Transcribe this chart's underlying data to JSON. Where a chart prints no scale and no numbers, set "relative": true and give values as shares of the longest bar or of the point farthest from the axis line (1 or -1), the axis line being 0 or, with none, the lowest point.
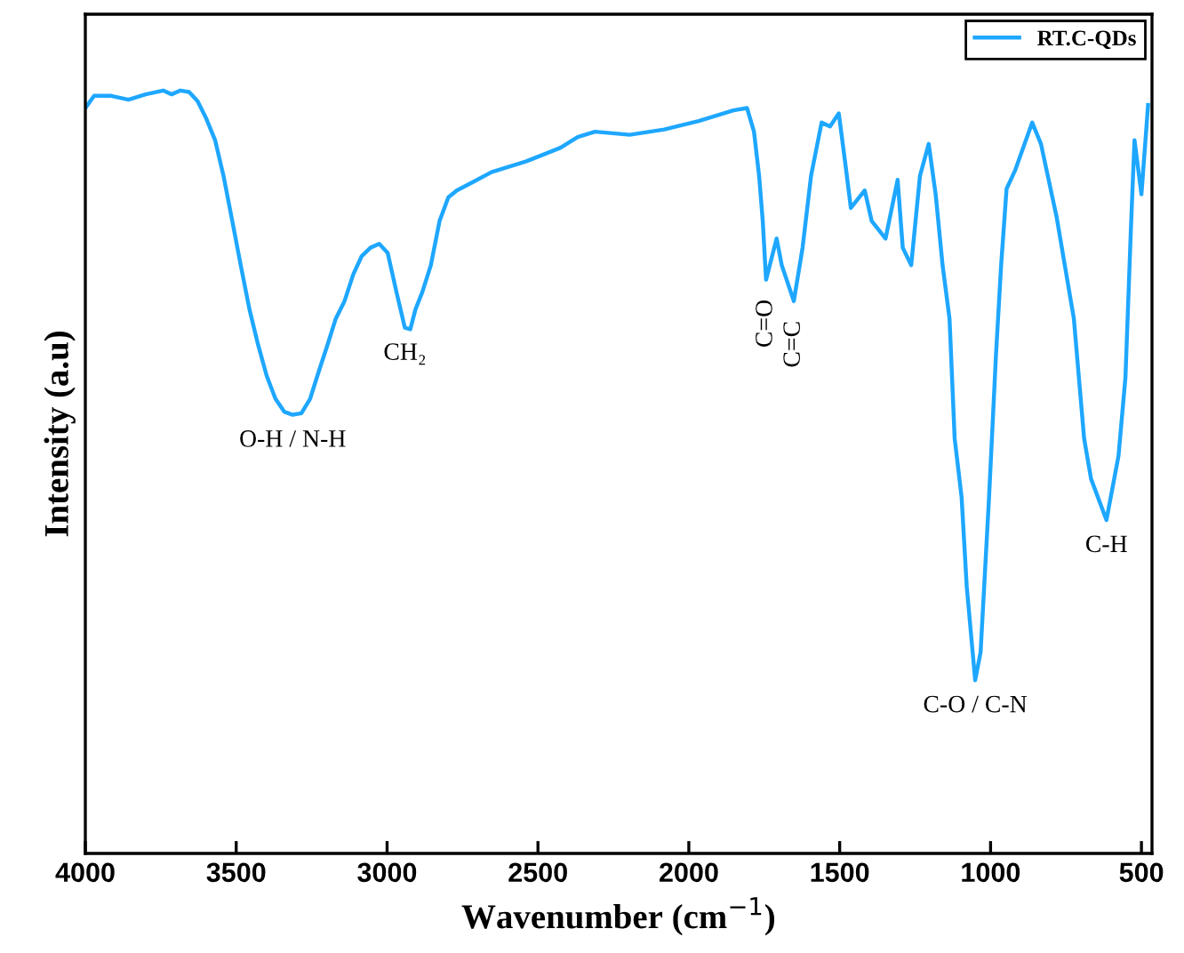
{
  "chart_data": {
    "type": "line",
    "relative": true,
    "xlabel": "Wavenumber (cm$^{−1}$)",
    "ylabel": "Intensity (a.u)",
    "xlim": [
      4000,
      465
    ],
    "xticks": [
      4000,
      3500,
      3000,
      2500,
      2000,
      1500,
      1000,
      500
    ],
    "tick_labels": "x",
    "grid": false,
    "legend": "top right",
    "marker": "none",
    "line_style": "solid",
    "x": [
      4000,
      3971,
      3914,
      3857,
      3800,
      3742,
      3714,
      3685,
      3656,
      3628,
      3599,
      3570,
      3542,
      3513,
      3485,
      3456,
      3427,
      3399,
      3370,
      3341,
      3313,
      3284,
      3255,
      3227,
      3198,
      3170,
      3141,
      3112,
      3084,
      3055,
      3026,
      2998,
      2969,
      2941,
      2923,
      2906,
      2883,
      2855,
      2826,
      2797,
      2769,
      2711,
      2654,
      2597,
      2540,
      2482,
      2425,
      2368,
      2311,
      2253,
      2196,
      2081,
      1967,
      1852,
      1807,
      1784,
      1767,
      1755,
      1744,
      1709,
      1692,
      1652,
      1623,
      1595,
      1560,
      1532,
      1503,
      1480,
      1463,
      1417,
      1394,
      1348,
      1308,
      1291,
      1263,
      1234,
      1205,
      1182,
      1159,
      1136,
      1119,
      1096,
      1079,
      1051,
      1033,
      1005,
      982,
      965,
      947,
      919,
      862,
      833,
      781,
      724,
      690,
      667,
      616,
      576,
      553,
      535,
      523,
      500,
      478
    ],
    "series": [
      {
        "name": "RT.C-QDs",
        "color": "#1ea7ff",
        "values": [
          0.977,
          0.993,
          0.993,
          0.988,
          0.995,
          1.0,
          0.995,
          1.0,
          0.998,
          0.986,
          0.963,
          0.935,
          0.888,
          0.829,
          0.771,
          0.713,
          0.666,
          0.626,
          0.596,
          0.579,
          0.575,
          0.577,
          0.596,
          0.631,
          0.666,
          0.701,
          0.724,
          0.759,
          0.783,
          0.794,
          0.799,
          0.787,
          0.736,
          0.689,
          0.687,
          0.713,
          0.736,
          0.771,
          0.829,
          0.86,
          0.869,
          0.881,
          0.893,
          0.9,
          0.907,
          0.916,
          0.925,
          0.939,
          0.946,
          0.944,
          0.942,
          0.949,
          0.96,
          0.974,
          0.977,
          0.946,
          0.888,
          0.829,
          0.752,
          0.806,
          0.771,
          0.724,
          0.794,
          0.888,
          0.958,
          0.953,
          0.97,
          0.9,
          0.846,
          0.869,
          0.829,
          0.806,
          0.883,
          0.794,
          0.771,
          0.888,
          0.93,
          0.864,
          0.771,
          0.701,
          0.544,
          0.467,
          0.35,
          0.227,
          0.264,
          0.467,
          0.654,
          0.771,
          0.871,
          0.895,
          0.958,
          0.93,
          0.834,
          0.701,
          0.544,
          0.491,
          0.437,
          0.521,
          0.624,
          0.818,
          0.935,
          0.864,
          0.981
        ]
      }
    ],
    "annotations": [
      {
        "text": "O-H / N-H",
        "x": 3313,
        "y": 0.575
      },
      {
        "text": "CH₂",
        "x": 2941,
        "y": 0.689
      },
      {
        "text": "C=O",
        "x": 1744,
        "y": 0.752
      },
      {
        "text": "C=C",
        "x": 1652,
        "y": 0.724
      },
      {
        "text": "C-O / C-N",
        "x": 1051,
        "y": 0.227
      },
      {
        "text": "C-H",
        "x": 616,
        "y": 0.437
      }
    ]
  }
}
